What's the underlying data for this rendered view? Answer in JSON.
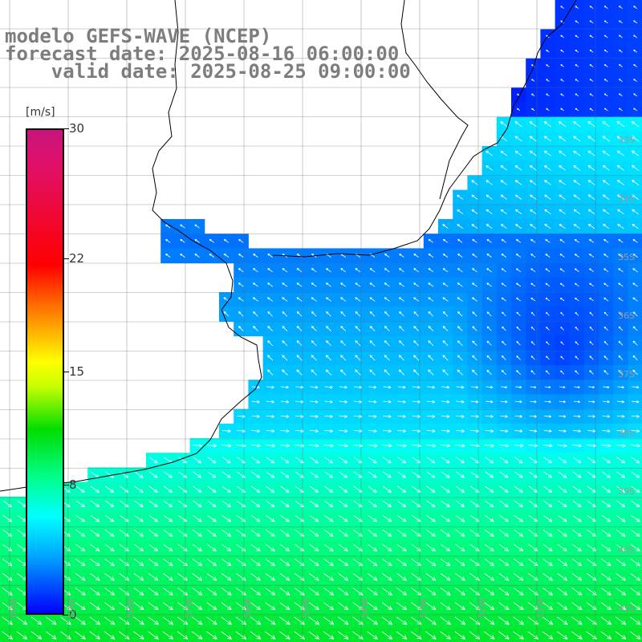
{
  "title": {
    "model": "modelo GEFS-WAVE (NCEP)",
    "forecast": "forecast date: 2025-08-16 06:00:00",
    "valid": "    valid date: 2025-08-25 09:00:00"
  },
  "colorbar": {
    "unit": "[m/s]",
    "ticks": [
      "30",
      "22",
      "15",
      "8",
      "0"
    ],
    "tick_values": [
      30,
      22,
      15,
      8,
      0
    ],
    "colors": [
      "#0000ff",
      "#00a8ff",
      "#00ffff",
      "#00ff8c",
      "#00dd00",
      "#ffff00",
      "#ff6a00",
      "#ff0000",
      "#c8147d"
    ]
  },
  "grid": {
    "lat_labels": [
      "33S",
      "34S",
      "35S",
      "36S",
      "37S",
      "38S",
      "39S",
      "40S",
      "41S"
    ],
    "lon_labels": [
      "60W",
      "59W",
      "58W",
      "57W",
      "56W",
      "55W",
      "54W",
      "53W",
      "52W",
      "51W"
    ]
  }
}
